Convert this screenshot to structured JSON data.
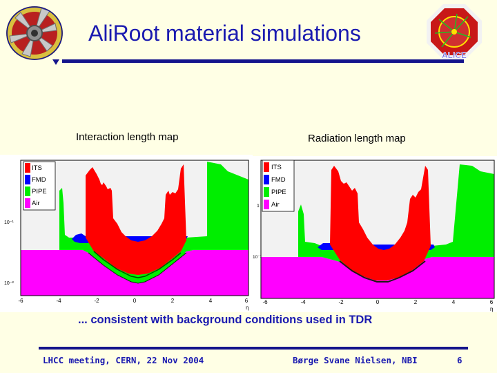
{
  "slide": {
    "title": "AliRoot material simulations",
    "caption_left": "Interaction length map",
    "caption_right": "Radiation length map",
    "summary": "... consistent with background conditions used in TDR",
    "footer_left": "LHCC meeting, CERN, 22 Nov 2004",
    "footer_center": "Børge Svane Nielsen, NBI",
    "page_number": "6",
    "logo_right_text": "ALICE"
  },
  "colors": {
    "title": "#1A1AB0",
    "rule": "#14148C",
    "background": "#FFFFE5",
    "ITS": "#FF0000",
    "FMD": "#0000FF",
    "PIPE": "#00EE00",
    "Air": "#FF00FF"
  },
  "chart_data": [
    {
      "type": "area",
      "legend": [
        "ITS",
        "FMD",
        "PIPE",
        "Air"
      ],
      "xticks": [
        "-6",
        "-4",
        "-2",
        "0",
        "2",
        "4",
        "6"
      ],
      "xlabel": "η",
      "yticks": [
        "10⁻¹",
        "10⁻²"
      ],
      "xlim": [
        -6,
        6
      ],
      "legend_position": "top-left"
    },
    {
      "type": "area",
      "legend": [
        "ITS",
        "FMD",
        "PIPE",
        "Air"
      ],
      "xticks": [
        "-6",
        "-4",
        "-2",
        "0",
        "2",
        "4",
        "6"
      ],
      "xlabel": "η",
      "yticks": [
        "1",
        "10⁻¹"
      ],
      "xlim": [
        -6,
        6
      ],
      "legend_position": "top-left"
    }
  ]
}
